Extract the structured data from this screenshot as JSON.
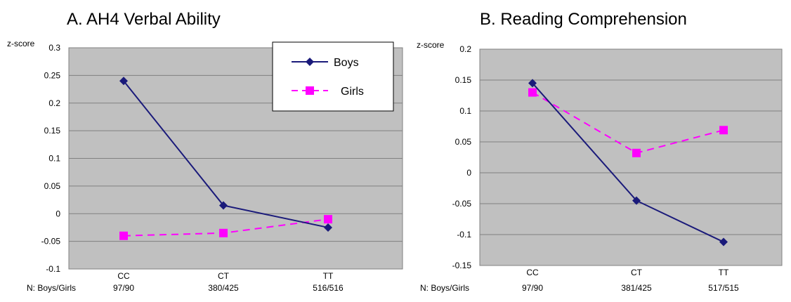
{
  "colors": {
    "boys": "#1a1a7a",
    "girls": "#ff00ff",
    "plot_bg": "#c0c0c0",
    "grid": "#808080"
  },
  "icons": {
    "boys_marker": "diamond-icon",
    "girls_marker": "square-icon"
  },
  "chart_data": [
    {
      "type": "line",
      "title": "A. AH4 Verbal Ability",
      "ylabel": "z-score",
      "categories": [
        "CC",
        "CT",
        "TT"
      ],
      "n_label": "N: Boys/Girls",
      "n_values": [
        "97/90",
        "380/425",
        "516/516"
      ],
      "ylim": [
        -0.1,
        0.3
      ],
      "yticks": [
        "0.3",
        "0.25",
        "0.2",
        "0.15",
        "0.1",
        "0.05",
        "0",
        "-0.05",
        "-0.1"
      ],
      "grid": true,
      "legend": "top-right",
      "series": [
        {
          "name": "Boys",
          "values": [
            0.24,
            0.015,
            -0.025
          ],
          "marker": "diamond",
          "line": "solid"
        },
        {
          "name": "Girls",
          "values": [
            -0.04,
            -0.035,
            -0.01
          ],
          "marker": "square",
          "line": "dashed"
        }
      ]
    },
    {
      "type": "line",
      "title": "B. Reading Comprehension",
      "ylabel": "z-score",
      "categories": [
        "CC",
        "CT",
        "TT"
      ],
      "n_label": "N: Boys/Girls",
      "n_values": [
        "97/90",
        "381/425",
        "517/515"
      ],
      "ylim": [
        -0.15,
        0.2
      ],
      "yticks": [
        "0.2",
        "0.15",
        "0.1",
        "0.05",
        "0",
        "-0.05",
        "-0.1",
        "-0.15"
      ],
      "grid": true,
      "legend": "none",
      "series": [
        {
          "name": "Boys",
          "values": [
            0.145,
            -0.045,
            -0.112
          ],
          "marker": "diamond",
          "line": "solid"
        },
        {
          "name": "Girls",
          "values": [
            0.13,
            0.032,
            0.069
          ],
          "marker": "square",
          "line": "dashed"
        }
      ]
    }
  ]
}
